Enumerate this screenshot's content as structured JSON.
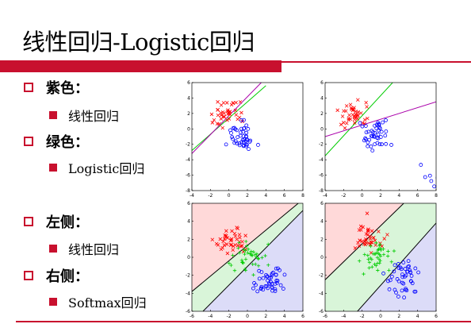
{
  "slide": {
    "title": "线性回归-Logistic回归",
    "accent_color": "#c8102e"
  },
  "bullets": [
    {
      "level": 1,
      "text": "紫色："
    },
    {
      "level": 2,
      "text": "线性回归"
    },
    {
      "level": 1,
      "text": "绿色："
    },
    {
      "level": 2,
      "text": "Logistic回归"
    },
    {
      "level": 1,
      "text": "左侧："
    },
    {
      "level": 2,
      "text": "线性回归"
    },
    {
      "level": 1,
      "text": "右侧："
    },
    {
      "level": 2,
      "text": "Softmax回归"
    }
  ],
  "chart_data": [
    {
      "type": "scatter",
      "title": "",
      "xlim": [
        -4,
        8
      ],
      "ylim": [
        -8,
        6
      ],
      "xticks": [
        "-4",
        "-2",
        "0",
        "2",
        "4",
        "6",
        "8"
      ],
      "yticks": [
        "6",
        "4",
        "2",
        "0",
        "-2",
        "-4",
        "-6",
        "-8"
      ],
      "series": [
        {
          "marker": "x",
          "color": "#ff0000",
          "cluster": {
            "cx": -0.5,
            "cy": 2.0,
            "n": 40
          }
        },
        {
          "marker": "o",
          "color": "#0000ff",
          "cluster": {
            "cx": 1.5,
            "cy": -1.0,
            "n": 45
          }
        }
      ],
      "lines": [
        {
          "color": "#00cc00",
          "points": [
            [
              -4,
              -2.8
            ],
            [
              4,
              5.6
            ]
          ]
        },
        {
          "color": "#aa00aa",
          "points": [
            [
              -4,
              -3.2
            ],
            [
              3.5,
              6
            ]
          ]
        }
      ]
    },
    {
      "type": "scatter",
      "title": "",
      "xlim": [
        -4,
        8
      ],
      "ylim": [
        -8,
        6
      ],
      "xticks": [
        "-4",
        "-2",
        "0",
        "2",
        "4",
        "6",
        "8"
      ],
      "yticks": [
        "6",
        "4",
        "2",
        "0",
        "-2",
        "-4",
        "-6",
        "-8"
      ],
      "series": [
        {
          "marker": "x",
          "color": "#ff0000",
          "cluster": {
            "cx": -0.5,
            "cy": 2.0,
            "n": 40
          }
        },
        {
          "marker": "o",
          "color": "#0000ff",
          "cluster": {
            "cx": 1.5,
            "cy": -1.0,
            "n": 45
          }
        },
        {
          "marker": "o",
          "color": "#0000ff",
          "cluster": {
            "cx": 7.8,
            "cy": -5.7,
            "n": 10
          }
        }
      ],
      "lines": [
        {
          "color": "#00cc00",
          "points": [
            [
              -4,
              -3.5
            ],
            [
              3.3,
              6
            ]
          ]
        },
        {
          "color": "#aa00aa",
          "points": [
            [
              -4,
              -1.0
            ],
            [
              8,
              3.5
            ]
          ]
        }
      ]
    },
    {
      "type": "scatter",
      "title": "",
      "xlim": [
        -6,
        6
      ],
      "ylim": [
        -6,
        6
      ],
      "xticks": [
        "-6",
        "-4",
        "-2",
        "0",
        "2",
        "4",
        "6"
      ],
      "yticks": [
        "6",
        "4",
        "2",
        "0",
        "-2",
        "-4",
        "-6"
      ],
      "regions": [
        {
          "color": "#ffd9d9",
          "polygon": [
            [
              -6,
              6
            ],
            [
              5.5,
              6
            ],
            [
              -6,
              -3.8
            ]
          ]
        },
        {
          "color": "#d9f5d9",
          "polygon": [
            [
              -6,
              -3.8
            ],
            [
              5.5,
              6
            ],
            [
              6,
              6
            ],
            [
              6,
              5.2
            ],
            [
              -4.8,
              -6
            ],
            [
              -6,
              -6
            ]
          ]
        },
        {
          "color": "#dcdcf8",
          "polygon": [
            [
              -4.8,
              -6
            ],
            [
              6,
              5.2
            ],
            [
              6,
              -6
            ]
          ]
        }
      ],
      "series": [
        {
          "marker": "x",
          "color": "#ff0000",
          "cluster": {
            "cx": -1.5,
            "cy": 2.0,
            "n": 40
          }
        },
        {
          "marker": "+",
          "color": "#00cc00",
          "cluster": {
            "cx": -0.2,
            "cy": 0.0,
            "n": 40
          }
        },
        {
          "marker": "o",
          "color": "#0000ff",
          "cluster": {
            "cx": 2.5,
            "cy": -2.5,
            "n": 45
          }
        }
      ],
      "lines": [
        {
          "color": "#000000",
          "points": [
            [
              -6,
              -3.8
            ],
            [
              5.5,
              6
            ]
          ]
        },
        {
          "color": "#000000",
          "points": [
            [
              -4.8,
              -6
            ],
            [
              6,
              5.2
            ]
          ]
        }
      ]
    },
    {
      "type": "scatter",
      "title": "",
      "xlim": [
        -6,
        6
      ],
      "ylim": [
        -6,
        6
      ],
      "xticks": [
        "-6",
        "-4",
        "-2",
        "0",
        "2",
        "4",
        "6"
      ],
      "yticks": [
        "6",
        "4",
        "2",
        "0",
        "-2",
        "-4",
        "-6"
      ],
      "regions": [
        {
          "color": "#ffd9d9",
          "polygon": [
            [
              -6,
              6
            ],
            [
              2.5,
              6
            ],
            [
              -6,
              -2.5
            ]
          ]
        },
        {
          "color": "#d9f5d9",
          "polygon": [
            [
              -6,
              -2.5
            ],
            [
              2.5,
              6
            ],
            [
              6,
              6
            ],
            [
              6,
              3.8
            ],
            [
              -2.5,
              -6
            ],
            [
              -6,
              -6
            ]
          ]
        },
        {
          "color": "#dcdcf8",
          "polygon": [
            [
              -2.5,
              -6
            ],
            [
              6,
              3.8
            ],
            [
              6,
              -6
            ]
          ]
        }
      ],
      "series": [
        {
          "marker": "x",
          "color": "#ff0000",
          "cluster": {
            "cx": -1.5,
            "cy": 2.0,
            "n": 40
          }
        },
        {
          "marker": "+",
          "color": "#00cc00",
          "cluster": {
            "cx": -0.2,
            "cy": 0.0,
            "n": 40
          }
        },
        {
          "marker": "o",
          "color": "#0000ff",
          "cluster": {
            "cx": 2.5,
            "cy": -2.5,
            "n": 45
          }
        }
      ],
      "lines": [
        {
          "color": "#000000",
          "points": [
            [
              -6,
              -2.5
            ],
            [
              2.5,
              6
            ]
          ]
        },
        {
          "color": "#000000",
          "points": [
            [
              -2.5,
              -6
            ],
            [
              6,
              3.8
            ]
          ]
        }
      ]
    }
  ]
}
